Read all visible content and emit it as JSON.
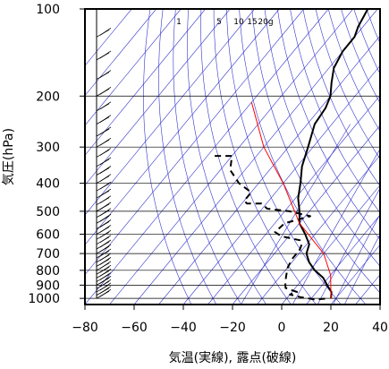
{
  "chart_data": {
    "type": "line",
    "title": "",
    "xlabel": "気温(実線), 露点(破線)",
    "ylabel": "気圧(hPa)",
    "xlim": [
      -80,
      40
    ],
    "ylim": [
      1050,
      100
    ],
    "yscale": "log",
    "x_ticks": [
      -80,
      -60,
      -40,
      -20,
      0,
      20,
      40
    ],
    "x_tick_labels": [
      "−80",
      "−60",
      "−40",
      "−20",
      "0",
      "20",
      "40"
    ],
    "y_ticks": [
      100,
      200,
      300,
      400,
      500,
      600,
      700,
      800,
      900,
      1000
    ],
    "y_tick_labels": [
      "100",
      "200",
      "300",
      "400",
      "500",
      "600",
      "700",
      "800",
      "900",
      "1000"
    ],
    "mixing_ratio_labels": [
      "1",
      "5",
      "10",
      "15",
      "20g"
    ],
    "series": [
      {
        "name": "",
        "style": "solid",
        "color": "#000000",
        "points": [
          [
            -64,
            100
          ],
          [
            -62,
            115
          ],
          [
            -60,
            125
          ],
          [
            -60,
            140
          ],
          [
            -58,
            160
          ],
          [
            -54,
            180
          ],
          [
            -50,
            200
          ],
          [
            -48,
            220
          ],
          [
            -47,
            250
          ],
          [
            -42,
            300
          ],
          [
            -38,
            350
          ],
          [
            -33,
            400
          ],
          [
            -29,
            450
          ],
          [
            -24,
            500
          ],
          [
            -20,
            550
          ],
          [
            -14,
            600
          ],
          [
            -9,
            650
          ],
          [
            -7,
            700
          ],
          [
            -3,
            750
          ],
          [
            2,
            800
          ],
          [
            8,
            850
          ],
          [
            12,
            900
          ],
          [
            16,
            950
          ],
          [
            18,
            1000
          ]
        ]
      },
      {
        "name": "",
        "style": "dashed",
        "color": "#000000",
        "points": [
          [
            -77,
            322
          ],
          [
            -70,
            322
          ],
          [
            -66,
            360
          ],
          [
            -58,
            400
          ],
          [
            -50,
            430
          ],
          [
            -50,
            460
          ],
          [
            -48,
            470
          ],
          [
            -42,
            470
          ],
          [
            -38,
            490
          ],
          [
            -28,
            500
          ],
          [
            -18,
            520
          ],
          [
            -26,
            550
          ],
          [
            -27,
            590
          ],
          [
            -23,
            610
          ],
          [
            -14,
            630
          ],
          [
            -12,
            650
          ],
          [
            -11,
            680
          ],
          [
            -11,
            730
          ],
          [
            -10,
            780
          ],
          [
            -8,
            830
          ],
          [
            -6,
            880
          ],
          [
            -4,
            920
          ],
          [
            2,
            950
          ],
          [
            0,
            970
          ],
          [
            5,
            990
          ],
          [
            9,
            1000
          ],
          [
            12,
            1010
          ],
          [
            17,
            1000
          ]
        ]
      },
      {
        "name": "",
        "style": "solid",
        "color": "#ff0000",
        "points": [
          [
            -80,
            210
          ],
          [
            -60,
            300
          ],
          [
            -40,
            400
          ],
          [
            -20,
            550
          ],
          [
            0,
            700
          ],
          [
            10,
            830
          ],
          [
            18,
            1000
          ]
        ]
      }
    ],
    "dry_adiabats_color": "#3333cc",
    "isotherms_color": "#3333cc",
    "mixing_ratio_color": "#3333cc",
    "grid": true,
    "wind_barbs": true
  }
}
